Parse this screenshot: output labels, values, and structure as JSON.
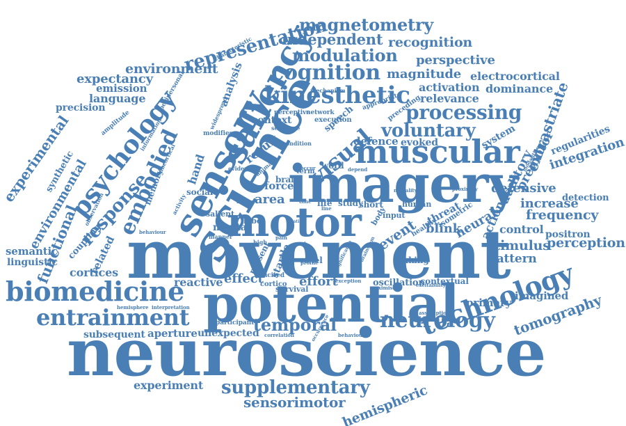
{
  "color": "#4a7fb5",
  "words": [
    "neuroscience",
    "movement",
    "potential",
    "imagery",
    "science",
    "motor",
    "muscular",
    "sensory",
    "saliency",
    "biomedicine",
    "technology",
    "entrainment",
    "kinesthetic",
    "cognition",
    "psychology",
    "processing",
    "neurology",
    "voluntary",
    "embodied",
    "representation",
    "magnetometry",
    "supplementary",
    "visual",
    "temporal",
    "response",
    "modulation",
    "independent",
    "recognition",
    "environment",
    "expectancy",
    "functional",
    "experimental",
    "environmental",
    "sensorimotor",
    "hemispheric",
    "tomography",
    "extrastriate",
    "premotor",
    "auditory",
    "perception",
    "stimulus",
    "pattern",
    "frequency",
    "increase",
    "integration",
    "regularities",
    "detection",
    "positron",
    "control",
    "action",
    "defensive",
    "neural",
    "blink",
    "threat",
    "event",
    "imagined",
    "primary",
    "perspective",
    "magnitude",
    "electrocortical",
    "activation",
    "dominance",
    "relevance",
    "language",
    "emission",
    "precision",
    "semantic",
    "linguistic",
    "cortices",
    "related",
    "coupling",
    "effect",
    "effort",
    "reactive",
    "area",
    "force",
    "mental",
    "context",
    "result",
    "defence",
    "evoked",
    "system",
    "analysis",
    "experiment",
    "aperture",
    "subsequent",
    "unexpected",
    "synthetic",
    "hand",
    "social",
    "memory",
    "study",
    "short",
    "oscillation",
    "contextual",
    "taking",
    "voxel",
    "startle",
    "present",
    "survival",
    "speech",
    "word",
    "life",
    "lobe",
    "brain",
    "human",
    "isometric",
    "input",
    "body",
    "healthy",
    "term",
    "salient",
    "cortico",
    "elicited",
    "network",
    "execution",
    "preceding",
    "appropriate",
    "perceptive",
    "mechanism",
    "characteristic",
    "amplitude",
    "information",
    "peripersonal",
    "widespread",
    "modifies",
    "subcortical",
    "evidence",
    "activity",
    "observation",
    "condition",
    "sequence",
    "animal",
    "occur",
    "depend",
    "proximity",
    "modality",
    "modalities",
    "factor",
    "manner",
    "pain",
    "high",
    "behaviour",
    "hemisphere",
    "interpretation",
    "participant",
    "correlation",
    "occurrence",
    "behavioural",
    "assumption",
    "excitability",
    "exception",
    "maximise",
    "significance",
    "brainstem",
    "profile",
    "line",
    "time",
    "spatial",
    "graph"
  ]
}
